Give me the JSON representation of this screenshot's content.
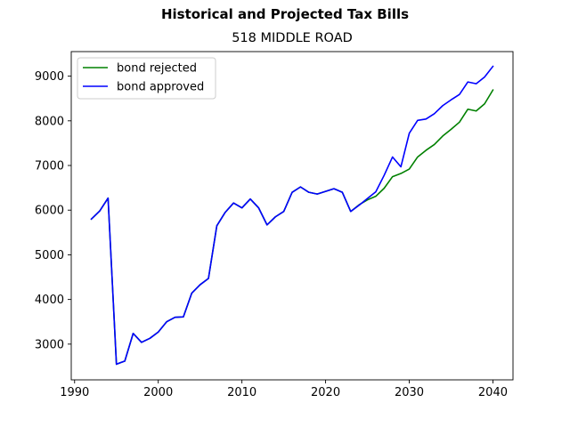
{
  "chart_data": {
    "type": "line",
    "suptitle": "Historical and Projected Tax Bills",
    "title": "518 MIDDLE ROAD",
    "xlabel": "",
    "ylabel": "",
    "xlim": [
      1989.6,
      2042.4
    ],
    "ylim": [
      2200,
      9550
    ],
    "xticks": [
      1990,
      2000,
      2010,
      2020,
      2030,
      2040
    ],
    "yticks": [
      3000,
      4000,
      5000,
      6000,
      7000,
      8000,
      9000
    ],
    "grid": false,
    "legend_position": "upper left",
    "series": [
      {
        "name": "bond rejected",
        "color": "#008000",
        "x": [
          1992,
          1993,
          1994,
          1995,
          1996,
          1997,
          1998,
          1999,
          2000,
          2001,
          2002,
          2003,
          2004,
          2005,
          2006,
          2007,
          2008,
          2009,
          2010,
          2011,
          2012,
          2013,
          2014,
          2015,
          2016,
          2017,
          2018,
          2019,
          2020,
          2021,
          2022,
          2023,
          2024,
          2025,
          2026,
          2027,
          2028,
          2029,
          2030,
          2031,
          2032,
          2033,
          2034,
          2035,
          2036,
          2037,
          2038,
          2039,
          2040
        ],
        "y": [
          5800,
          5980,
          6270,
          2550,
          2620,
          3240,
          3040,
          3130,
          3270,
          3500,
          3600,
          3610,
          4140,
          4330,
          4470,
          5650,
          5950,
          6160,
          6050,
          6250,
          6050,
          5670,
          5850,
          5970,
          6400,
          6520,
          6400,
          6360,
          6420,
          6480,
          6400,
          5970,
          6120,
          6230,
          6310,
          6490,
          6750,
          6820,
          6920,
          7190,
          7340,
          7470,
          7660,
          7810,
          7970,
          8260,
          8220,
          8380,
          8690
        ]
      },
      {
        "name": "bond approved",
        "color": "#0000ff",
        "x": [
          1992,
          1993,
          1994,
          1995,
          1996,
          1997,
          1998,
          1999,
          2000,
          2001,
          2002,
          2003,
          2004,
          2005,
          2006,
          2007,
          2008,
          2009,
          2010,
          2011,
          2012,
          2013,
          2014,
          2015,
          2016,
          2017,
          2018,
          2019,
          2020,
          2021,
          2022,
          2023,
          2024,
          2025,
          2026,
          2027,
          2028,
          2029,
          2030,
          2031,
          2032,
          2033,
          2034,
          2035,
          2036,
          2037,
          2038,
          2039,
          2040
        ],
        "y": [
          5800,
          5980,
          6270,
          2550,
          2620,
          3240,
          3040,
          3130,
          3270,
          3500,
          3600,
          3610,
          4140,
          4330,
          4470,
          5650,
          5950,
          6160,
          6050,
          6250,
          6050,
          5670,
          5850,
          5970,
          6400,
          6520,
          6400,
          6360,
          6420,
          6480,
          6400,
          5970,
          6110,
          6260,
          6410,
          6780,
          7190,
          6970,
          7720,
          8010,
          8040,
          8160,
          8340,
          8470,
          8590,
          8870,
          8830,
          8980,
          9220
        ]
      }
    ]
  }
}
